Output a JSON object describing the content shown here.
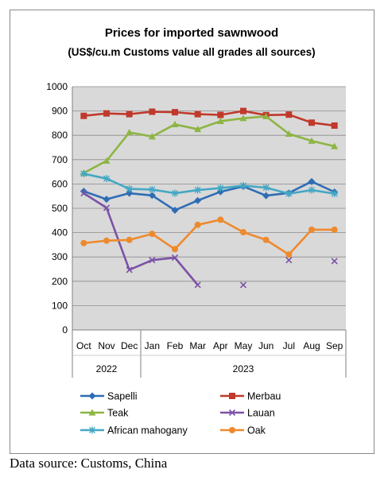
{
  "chart_data": {
    "type": "line",
    "title": "Prices for imported sawnwood",
    "subtitle": "(US$/cu.m Customs value all grades all sources)",
    "xlabel": "",
    "ylabel": "",
    "categories": [
      "Oct",
      "Nov",
      "Dec",
      "Jan",
      "Feb",
      "Mar",
      "Apr",
      "May",
      "Jun",
      "Jul",
      "Aug",
      "Sep"
    ],
    "year_groups": [
      {
        "label": "2022",
        "start": 0,
        "end": 2
      },
      {
        "label": "2023",
        "start": 3,
        "end": 11
      }
    ],
    "ylim": [
      0,
      1000
    ],
    "yticks": [
      0,
      100,
      200,
      300,
      400,
      500,
      600,
      700,
      800,
      900,
      1000
    ],
    "grid": true,
    "legend_position": "bottom",
    "series": [
      {
        "name": "Sapelli",
        "color": "#2E6DB4",
        "marker": "diamond",
        "values": [
          570,
          537,
          562,
          553,
          492,
          532,
          568,
          590,
          552,
          563,
          610,
          567
        ]
      },
      {
        "name": "Merbau",
        "color": "#C0392B",
        "marker": "square",
        "values": [
          880,
          890,
          887,
          897,
          895,
          887,
          884,
          900,
          883,
          885,
          852,
          840
        ]
      },
      {
        "name": "Teak",
        "color": "#8DB543",
        "marker": "triangle",
        "values": [
          645,
          695,
          812,
          795,
          845,
          825,
          858,
          870,
          878,
          806,
          777,
          755
        ]
      },
      {
        "name": "Lauan",
        "color": "#7B52A6",
        "marker": "x",
        "values": [
          562,
          502,
          247,
          287,
          297,
          185,
          null,
          185,
          null,
          287,
          null,
          283
        ]
      },
      {
        "name": "African mahogany",
        "color": "#45A7C4",
        "marker": "star",
        "values": [
          642,
          622,
          580,
          577,
          562,
          575,
          583,
          593,
          585,
          560,
          575,
          560
        ]
      },
      {
        "name": "Oak",
        "color": "#EE8A2E",
        "marker": "circle",
        "values": [
          357,
          367,
          370,
          395,
          332,
          432,
          453,
          402,
          370,
          310,
          412,
          412
        ]
      }
    ]
  },
  "source": "Data source: Customs, China"
}
